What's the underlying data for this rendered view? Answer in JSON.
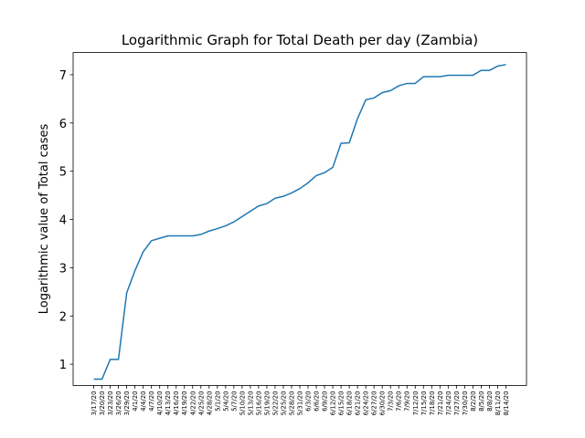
{
  "chart_data": {
    "type": "line",
    "title": "Logarithmic Graph for Total Death per day (Zambia)",
    "y_label": "Logarithmic value of Total cases",
    "categories": [
      "3/17/20",
      "3/20/20",
      "3/23/20",
      "3/26/20",
      "3/29/20",
      "4/1/20",
      "4/4/20",
      "4/7/20",
      "4/10/20",
      "4/13/20",
      "4/16/20",
      "4/19/20",
      "4/22/20",
      "4/25/20",
      "4/28/20",
      "5/1/20",
      "5/4/20",
      "5/7/20",
      "5/10/20",
      "5/13/20",
      "5/16/20",
      "5/19/20",
      "5/22/20",
      "5/25/20",
      "5/28/20",
      "5/31/20",
      "6/3/20",
      "6/6/20",
      "6/9/20",
      "6/12/20",
      "6/15/20",
      "6/18/20",
      "6/21/20",
      "6/24/20",
      "6/27/20",
      "6/30/20",
      "7/3/20",
      "7/6/20",
      "7/9/20",
      "7/12/20",
      "7/15/20",
      "7/18/20",
      "7/21/20",
      "7/24/20",
      "7/27/20",
      "7/30/20",
      "8/2/20",
      "8/5/20",
      "8/8/20",
      "8/11/20",
      "8/14/20"
    ],
    "values": [
      0.69,
      0.69,
      1.1,
      1.1,
      2.48,
      2.94,
      3.33,
      3.56,
      3.61,
      3.66,
      3.66,
      3.66,
      3.66,
      3.69,
      3.76,
      3.81,
      3.87,
      3.95,
      4.06,
      4.17,
      4.28,
      4.33,
      4.44,
      4.48,
      4.55,
      4.64,
      4.76,
      4.91,
      4.97,
      5.08,
      5.58,
      5.59,
      6.09,
      6.48,
      6.52,
      6.63,
      6.67,
      6.77,
      6.82,
      6.82,
      6.96,
      6.96,
      6.96,
      6.99,
      6.99,
      6.99,
      6.99,
      7.09,
      7.09,
      7.18,
      7.21
    ],
    "color": "#1f77b4",
    "ylim": [
      0.56,
      7.46
    ],
    "yticks": [
      1,
      2,
      3,
      4,
      5,
      6,
      7
    ]
  }
}
